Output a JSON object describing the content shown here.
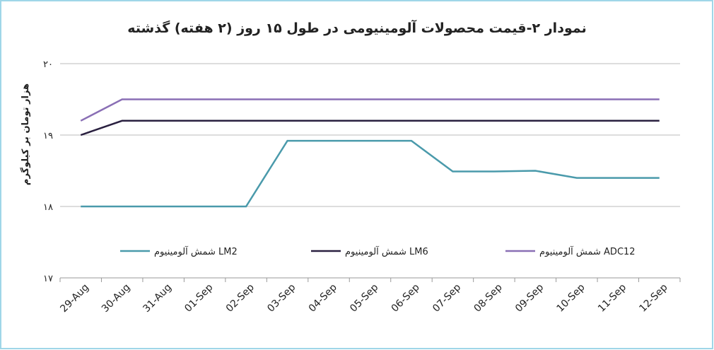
{
  "chart_data": {
    "type": "line",
    "title": "نمودار ۲-قیمت محصولات آلومینیومی در طول ۱۵ روز (۲ هفته) گذشته",
    "y_label": "هزار تومان بر کیلوگرم",
    "categories": [
      "29-Aug",
      "30-Aug",
      "31-Aug",
      "01-Sep",
      "02-Sep",
      "03-Sep",
      "04-Sep",
      "05-Sep",
      "06-Sep",
      "07-Sep",
      "08-Sep",
      "09-Sep",
      "10-Sep",
      "11-Sep",
      "12-Sep"
    ],
    "series": [
      {
        "name": "شمش آلومینیوم LM2",
        "color": "#4a9aab",
        "values": [
          18,
          18,
          18,
          18,
          18,
          18.92,
          18.92,
          18.92,
          18.92,
          18.49,
          18.49,
          18.5,
          18.4,
          18.4,
          18.4
        ]
      },
      {
        "name": "شمش آلومینیوم LM6",
        "color": "#2a2040",
        "values": [
          19,
          19.2,
          19.2,
          19.2,
          19.2,
          19.2,
          19.2,
          19.2,
          19.2,
          19.2,
          19.2,
          19.2,
          19.2,
          19.2,
          19.2
        ]
      },
      {
        "name": "شمش آلومینیوم ADC12",
        "color": "#8a6fb5",
        "values": [
          19.2,
          19.5,
          19.5,
          19.5,
          19.5,
          19.5,
          19.5,
          19.5,
          19.5,
          19.5,
          19.5,
          19.5,
          19.5,
          19.5,
          19.5
        ]
      }
    ],
    "ylim": [
      17,
      20
    ],
    "yticks": [
      {
        "value": 17,
        "label": "۱۷"
      },
      {
        "value": 18,
        "label": "۱۸"
      },
      {
        "value": 19,
        "label": "۱۹"
      },
      {
        "value": 20,
        "label": "۲۰"
      }
    ],
    "grid": true,
    "legend": "bottom"
  }
}
